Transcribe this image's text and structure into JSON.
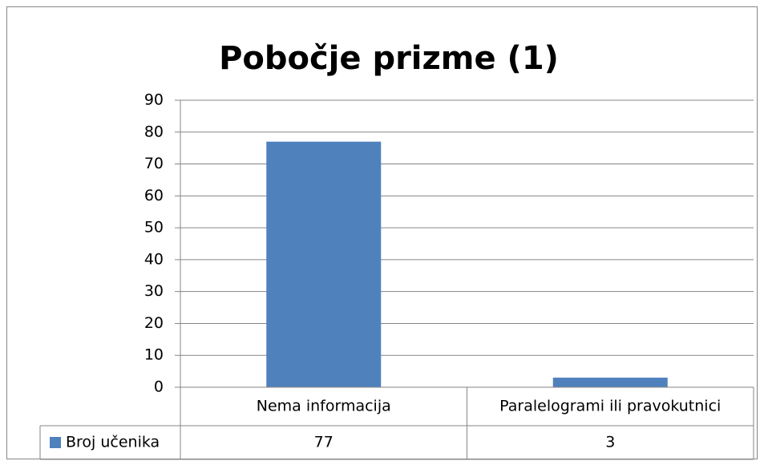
{
  "chart_data": {
    "type": "bar",
    "title": "Pobočje prizme (1)",
    "categories": [
      "Nema informacija",
      "Paralelogrami ili pravokutnici"
    ],
    "series": [
      {
        "name": "Broj učenika",
        "color": "#4f81bd",
        "values": [
          77,
          3
        ]
      }
    ],
    "ylim": [
      0,
      90
    ],
    "yticks": [
      0,
      10,
      20,
      30,
      40,
      50,
      60,
      70,
      80,
      90
    ],
    "grid": true,
    "data_table": true
  }
}
